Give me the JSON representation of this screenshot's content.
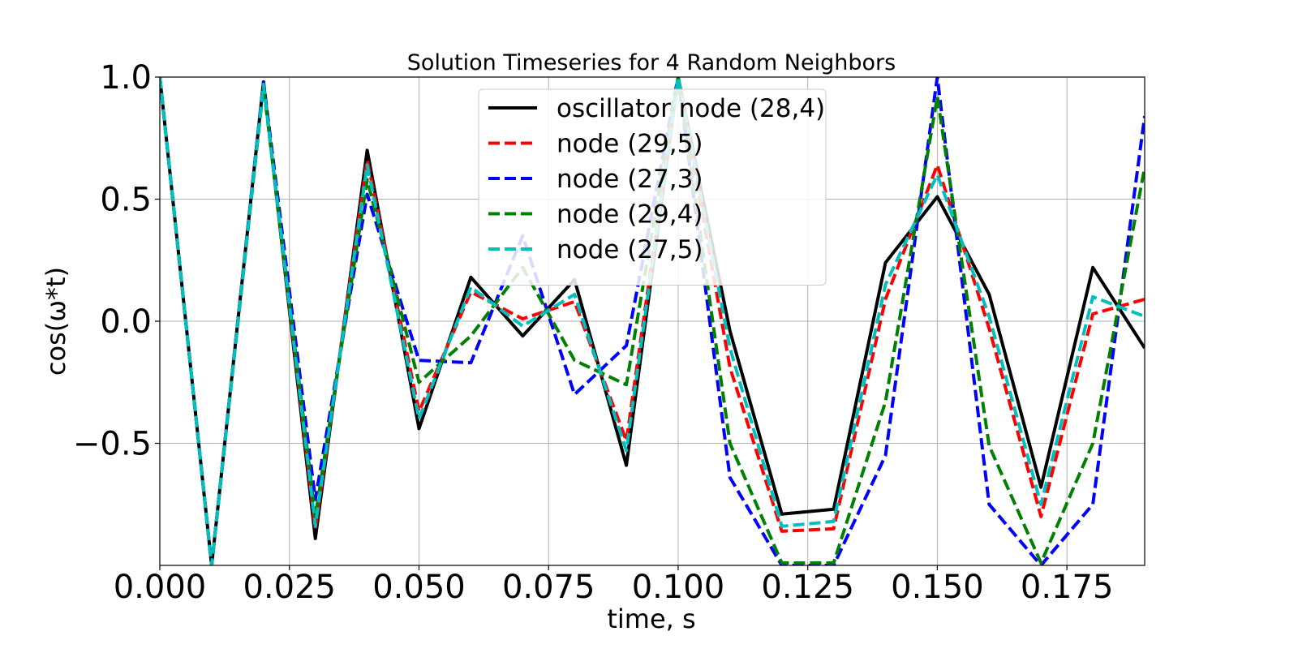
{
  "chart_data": {
    "type": "line",
    "title": "Solution Timeseries for 4 Random Neighbors",
    "xlabel": "time, s",
    "ylabel": "cos(ω*t)",
    "xlim": [
      0.0,
      0.19
    ],
    "ylim": [
      -1.0,
      1.0
    ],
    "grid": true,
    "legend_position": "top-center",
    "x_ticks": [
      0.0,
      0.025,
      0.05,
      0.075,
      0.1,
      0.125,
      0.15,
      0.175
    ],
    "x_tick_labels": [
      "0.000",
      "0.025",
      "0.050",
      "0.075",
      "0.100",
      "0.125",
      "0.150",
      "0.175"
    ],
    "y_ticks": [
      1.0,
      0.5,
      0.0,
      -0.5
    ],
    "y_tick_labels": [
      "1.0",
      "0.5",
      "0.0",
      "−0.5"
    ],
    "x": [
      0.0,
      0.01,
      0.02,
      0.03,
      0.04,
      0.05,
      0.06,
      0.07,
      0.08,
      0.09,
      0.1,
      0.11,
      0.12,
      0.13,
      0.14,
      0.15,
      0.16,
      0.17,
      0.18,
      0.19
    ],
    "series": [
      {
        "name": "oscillator node (28,4)",
        "color": "#000000",
        "dash": "solid",
        "values": [
          1.0,
          -1.0,
          0.98,
          -0.89,
          0.7,
          -0.44,
          0.18,
          -0.06,
          0.17,
          -0.59,
          1.0,
          -0.04,
          -0.79,
          -0.77,
          0.24,
          0.51,
          0.11,
          -0.68,
          0.22,
          -0.11
        ]
      },
      {
        "name": "node (29,5)",
        "color": "#ff0000",
        "dash": "dashed",
        "values": [
          1.0,
          -1.0,
          0.98,
          -0.85,
          0.66,
          -0.37,
          0.12,
          0.01,
          0.08,
          -0.49,
          1.0,
          -0.19,
          -0.86,
          -0.85,
          0.09,
          0.64,
          -0.03,
          -0.8,
          0.03,
          0.09
        ]
      },
      {
        "name": "node (27,3)",
        "color": "#0000ff",
        "dash": "dashed",
        "values": [
          1.0,
          -1.0,
          0.98,
          -0.73,
          0.52,
          -0.16,
          -0.17,
          0.35,
          -0.3,
          -0.1,
          1.0,
          -0.64,
          -1.0,
          -1.0,
          -0.55,
          1.0,
          -0.75,
          -1.0,
          -0.75,
          0.84
        ]
      },
      {
        "name": "node (29,4)",
        "color": "#008000",
        "dash": "dashed",
        "values": [
          1.0,
          -1.0,
          0.96,
          -0.8,
          0.58,
          -0.25,
          -0.06,
          0.22,
          -0.16,
          -0.26,
          1.0,
          -0.5,
          -0.99,
          -0.99,
          -0.33,
          0.92,
          -0.51,
          -0.99,
          -0.5,
          0.63
        ]
      },
      {
        "name": "node (27,5)",
        "color": "#00bfbf",
        "dash": "dashed",
        "values": [
          1.0,
          -1.0,
          0.97,
          -0.84,
          0.64,
          -0.4,
          0.14,
          -0.02,
          0.11,
          -0.53,
          1.0,
          -0.11,
          -0.84,
          -0.82,
          0.15,
          0.6,
          0.02,
          -0.75,
          0.1,
          0.02
        ]
      }
    ]
  }
}
